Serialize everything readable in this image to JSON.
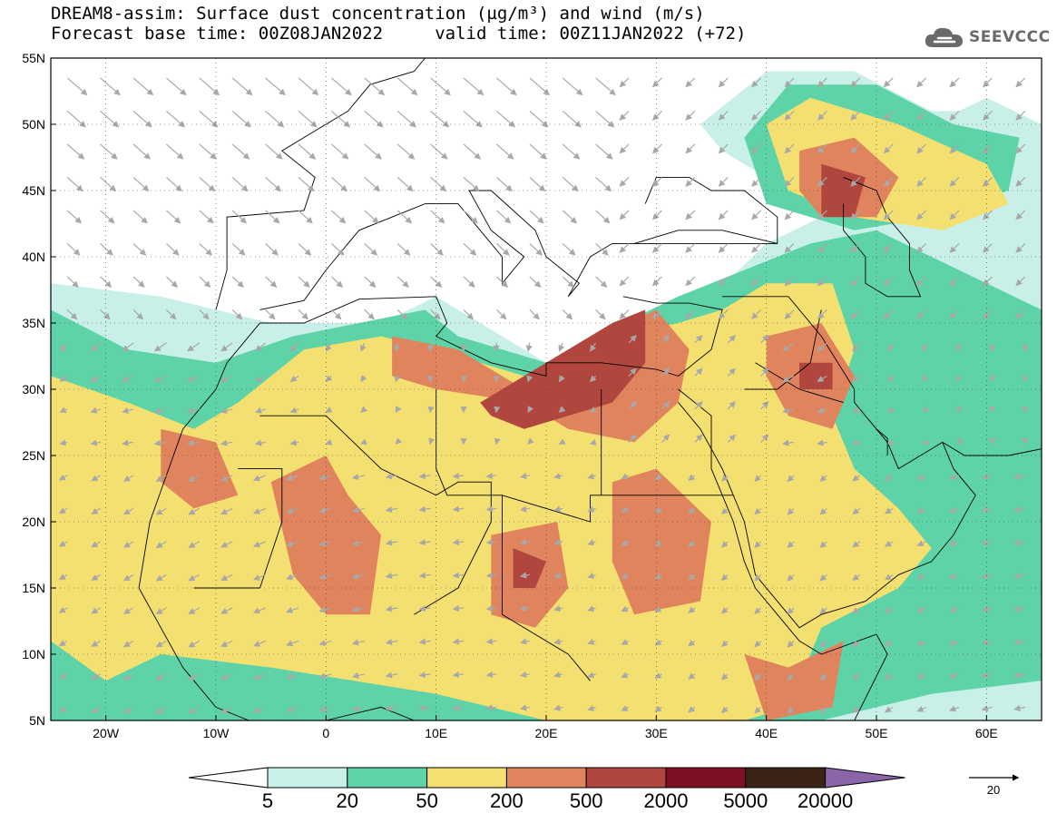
{
  "header": {
    "title_line1": "DREAM8-assim: Surface dust concentration (µg/m³) and wind (m/s)",
    "title_line2": "Forecast base time: 00Z08JAN2022     valid time: 00Z11JAN2022 (+72)"
  },
  "logo": {
    "icon": "cloud-icon",
    "text": "SEEVCCC"
  },
  "map": {
    "lon_range": [
      -25,
      65
    ],
    "lat_range": [
      5,
      55
    ],
    "lon_ticks": [
      {
        "value": -20,
        "label": "20W"
      },
      {
        "value": -10,
        "label": "10W"
      },
      {
        "value": 0,
        "label": "0"
      },
      {
        "value": 10,
        "label": "10E"
      },
      {
        "value": 20,
        "label": "20E"
      },
      {
        "value": 30,
        "label": "30E"
      },
      {
        "value": 40,
        "label": "40E"
      },
      {
        "value": 50,
        "label": "50E"
      },
      {
        "value": 60,
        "label": "60E"
      }
    ],
    "lat_ticks": [
      {
        "value": 55,
        "label": "55N"
      },
      {
        "value": 50,
        "label": "50N"
      },
      {
        "value": 45,
        "label": "45N"
      },
      {
        "value": 40,
        "label": "40N"
      },
      {
        "value": 35,
        "label": "35N"
      },
      {
        "value": 30,
        "label": "30N"
      },
      {
        "value": 25,
        "label": "25N"
      },
      {
        "value": 20,
        "label": "20N"
      },
      {
        "value": 15,
        "label": "15N"
      },
      {
        "value": 10,
        "label": "10N"
      },
      {
        "value": 5,
        "label": "5N"
      }
    ],
    "grid": true,
    "colors": {
      "lvl5": "#c8f0e8",
      "lvl20": "#5fd3a8",
      "lvl50": "#f4e070",
      "lvl200": "#e0845e",
      "lvl500": "#b0463e",
      "lvl2000": "#7e0f24",
      "lvl5000": "#3b2416",
      "lvl20000": "#8a66a8",
      "wind_arrow": "#a8a8a8"
    }
  },
  "colorbar": {
    "labels": [
      "5",
      "20",
      "50",
      "200",
      "500",
      "2000",
      "5000",
      "20000"
    ],
    "colors": [
      "#c8f0e8",
      "#5fd3a8",
      "#f4e070",
      "#e0845e",
      "#b0463e",
      "#7e0f24",
      "#3b2416"
    ],
    "under_color": "#ffffff",
    "over_color": "#8a66a8"
  },
  "wind_reference": {
    "label": "20"
  }
}
